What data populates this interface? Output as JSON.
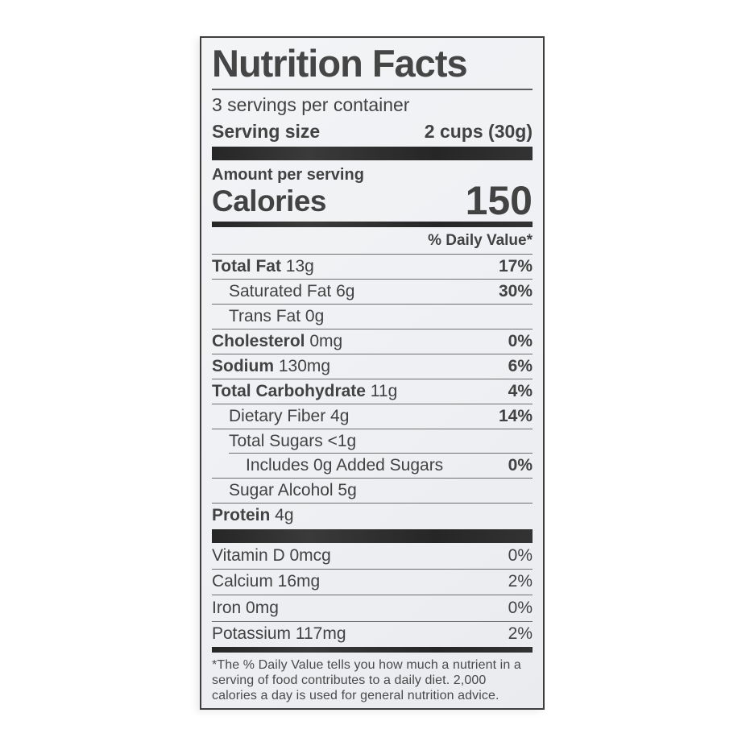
{
  "label": {
    "title": "Nutrition Facts",
    "servings_per_container": "3 servings per container",
    "serving_size_label": "Serving size",
    "serving_size_value": "2 cups (30g)",
    "amount_per_serving": "Amount per serving",
    "calories_label": "Calories",
    "calories_value": "150",
    "daily_value_header": "% Daily Value*",
    "nutrients": [
      {
        "bold": "Total Fat",
        "text": " 13g",
        "pct": "17%",
        "pct_bold": true,
        "indent": 0
      },
      {
        "bold": "",
        "text": "Saturated Fat 6g",
        "pct": "30%",
        "pct_bold": true,
        "indent": 1
      },
      {
        "bold": "",
        "text": "Trans Fat 0g",
        "pct": "",
        "pct_bold": false,
        "indent": 1
      },
      {
        "bold": "Cholesterol",
        "text": " 0mg",
        "pct": "0%",
        "pct_bold": true,
        "indent": 0
      },
      {
        "bold": "Sodium",
        "text": " 130mg",
        "pct": "6%",
        "pct_bold": true,
        "indent": 0
      },
      {
        "bold": "Total Carbohydrate",
        "text": " 11g",
        "pct": "4%",
        "pct_bold": true,
        "indent": 0
      },
      {
        "bold": "",
        "text": "Dietary Fiber 4g",
        "pct": "14%",
        "pct_bold": true,
        "indent": 1
      },
      {
        "bold": "",
        "text": "Total Sugars <1g",
        "pct": "",
        "pct_bold": false,
        "indent": 1
      },
      {
        "bold": "",
        "text": "Includes 0g Added Sugars",
        "pct": "0%",
        "pct_bold": true,
        "indent": 2,
        "rule_indented": true
      },
      {
        "bold": "",
        "text": "Sugar Alcohol 5g",
        "pct": "",
        "pct_bold": false,
        "indent": 1
      },
      {
        "bold": "Protein",
        "text": " 4g",
        "pct": "",
        "pct_bold": false,
        "indent": 0
      }
    ],
    "vitamins": [
      {
        "text": "Vitamin D 0mcg",
        "pct": "0%"
      },
      {
        "text": "Calcium 16mg",
        "pct": "2%"
      },
      {
        "text": "Iron 0mg",
        "pct": "0%"
      },
      {
        "text": "Potassium 117mg",
        "pct": "2%"
      }
    ],
    "footnote": "*The % Daily Value tells you how much a nutrient in a serving of food contributes to a daily diet. 2,000 calories a day is used for general nutrition advice."
  },
  "colors": {
    "page_background": "#ffffff",
    "label_background": "#eef0f3",
    "text": "#424242",
    "bar": "#2d2d2d",
    "rule": "#6e6e6e",
    "border": "#3e3e3e"
  }
}
